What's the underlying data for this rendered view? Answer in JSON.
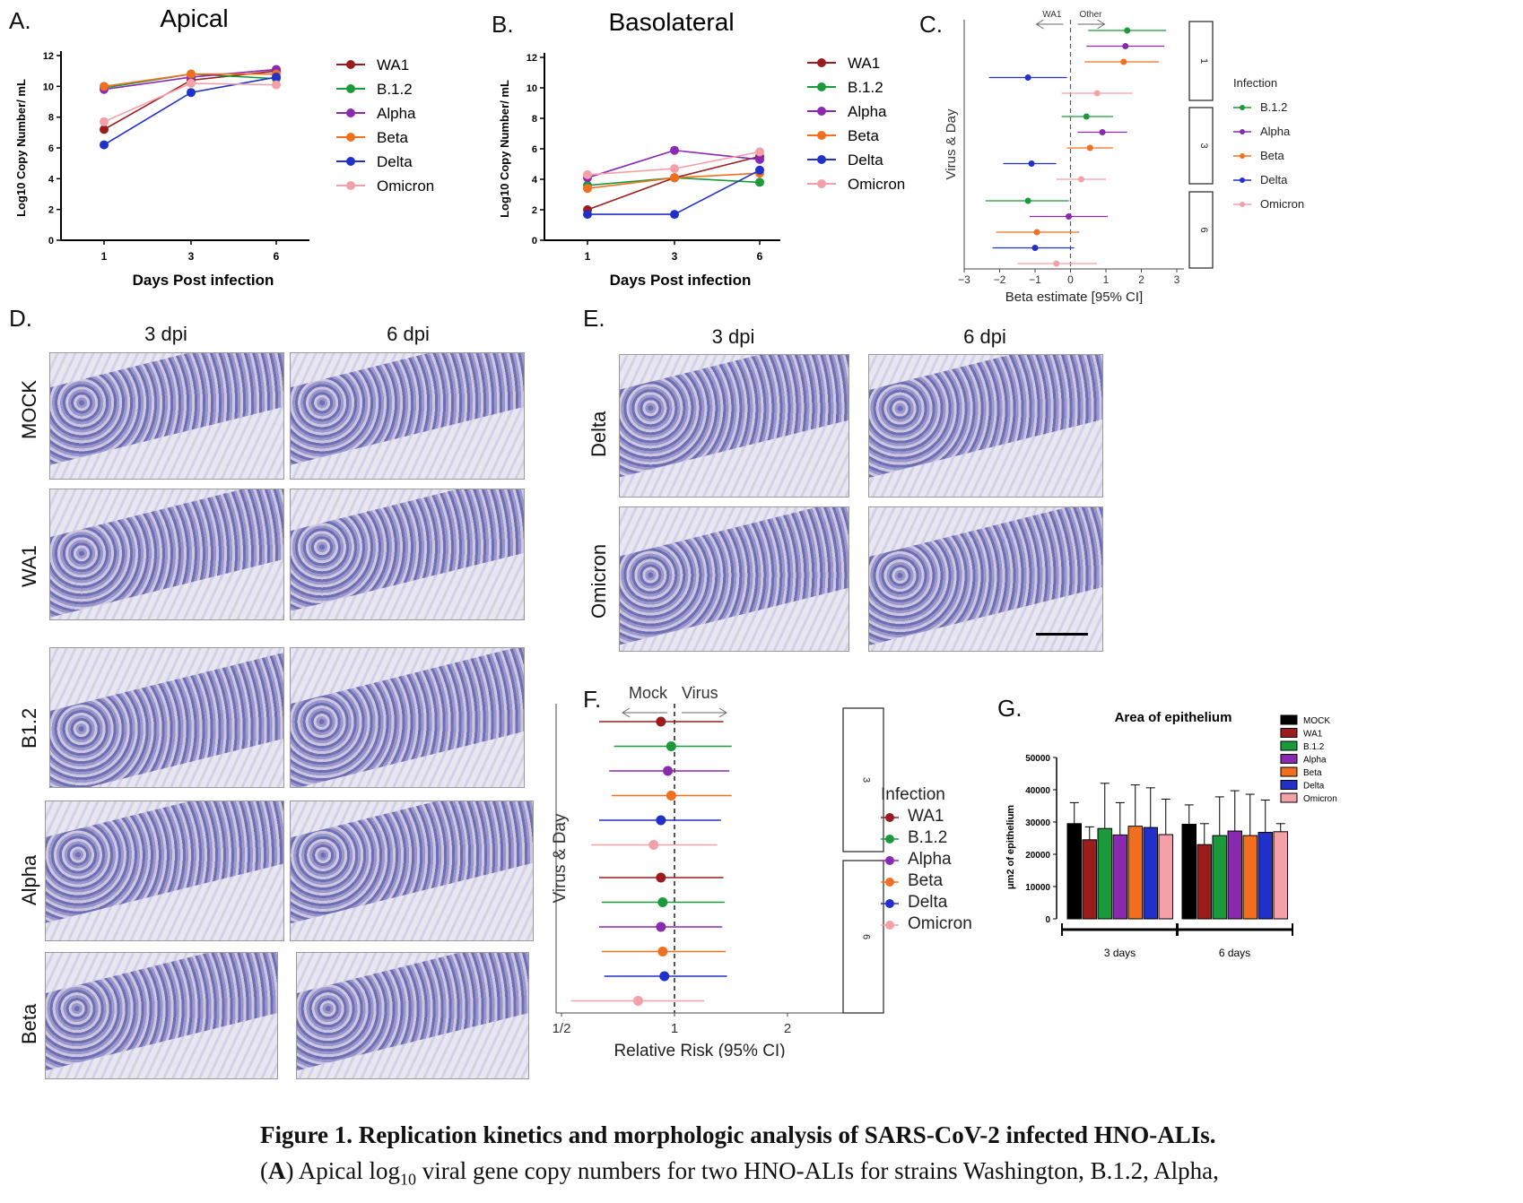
{
  "panels": {
    "a": "A.",
    "b": "B.",
    "c": "C.",
    "d": "D.",
    "e": "E.",
    "f": "F.",
    "g": "G."
  },
  "colors": {
    "WA1": "#9b1c1c",
    "B.1.2": "#1a9a3a",
    "Alpha": "#8a2ab0",
    "Beta": "#f07020",
    "Delta": "#2030c8",
    "Omicron": "#f4a0a8",
    "MOCK": "#000000"
  },
  "chart_data": [
    {
      "id": "apical",
      "type": "line",
      "title": "Apical",
      "xlabel": "Days Post infection",
      "ylabel": "Log10 Copy Number/ mL",
      "categories": [
        "1",
        "3",
        "6"
      ],
      "ylim": [
        0,
        12
      ],
      "yticks": [
        "0",
        "2",
        "4",
        "6",
        "8",
        "10",
        "12"
      ],
      "series": [
        {
          "name": "WA1",
          "values": [
            7.2,
            10.4,
            11.0
          ]
        },
        {
          "name": "B.1.2",
          "values": [
            9.9,
            10.8,
            10.5
          ]
        },
        {
          "name": "Alpha",
          "values": [
            9.8,
            10.6,
            11.1
          ]
        },
        {
          "name": "Beta",
          "values": [
            10.0,
            10.8,
            10.8
          ]
        },
        {
          "name": "Delta",
          "values": [
            6.2,
            9.6,
            10.6
          ]
        },
        {
          "name": "Omicron",
          "values": [
            7.7,
            10.2,
            10.1
          ]
        }
      ]
    },
    {
      "id": "basolateral",
      "type": "line",
      "title": "Basolateral",
      "xlabel": "Days Post infection",
      "ylabel": "Log10 Copy Number/ mL",
      "categories": [
        "1",
        "3",
        "6"
      ],
      "ylim": [
        0,
        12
      ],
      "yticks": [
        "0",
        "2",
        "4",
        "6",
        "8",
        "10",
        "12"
      ],
      "series": [
        {
          "name": "WA1",
          "values": [
            2.0,
            4.1,
            5.5
          ]
        },
        {
          "name": "B.1.2",
          "values": [
            3.6,
            4.1,
            3.8
          ]
        },
        {
          "name": "Alpha",
          "values": [
            4.1,
            5.9,
            5.3
          ]
        },
        {
          "name": "Beta",
          "values": [
            3.4,
            4.1,
            4.4
          ]
        },
        {
          "name": "Delta",
          "values": [
            1.7,
            1.7,
            4.6
          ]
        },
        {
          "name": "Omicron",
          "values": [
            4.3,
            4.7,
            5.8
          ]
        }
      ]
    },
    {
      "id": "beta_estimate",
      "type": "scatter",
      "xlabel": "Beta estimate [95% CI]",
      "ylabel": "Virus & Day",
      "xlim": [
        -3,
        3
      ],
      "xticks": [
        "−3",
        "−2",
        "−1",
        "0",
        "1",
        "2",
        "3"
      ],
      "direction_left": "WA1",
      "direction_right": "Other",
      "legend_title": "Infection",
      "legend": [
        "B.1.2",
        "Alpha",
        "Beta",
        "Delta",
        "Omicron"
      ],
      "facets": [
        "1",
        "3",
        "6"
      ],
      "points": [
        {
          "day": "1",
          "name": "B.1.2",
          "est": 1.6,
          "lo": 0.5,
          "hi": 2.7
        },
        {
          "day": "1",
          "name": "Alpha",
          "est": 1.55,
          "lo": 0.45,
          "hi": 2.65
        },
        {
          "day": "1",
          "name": "Beta",
          "est": 1.5,
          "lo": 0.4,
          "hi": 2.5
        },
        {
          "day": "1",
          "name": "Delta",
          "est": -1.2,
          "lo": -2.3,
          "hi": -0.1
        },
        {
          "day": "1",
          "name": "Omicron",
          "est": 0.75,
          "lo": -0.25,
          "hi": 1.75
        },
        {
          "day": "3",
          "name": "B.1.2",
          "est": 0.45,
          "lo": -0.25,
          "hi": 1.2
        },
        {
          "day": "3",
          "name": "Alpha",
          "est": 0.9,
          "lo": 0.2,
          "hi": 1.6
        },
        {
          "day": "3",
          "name": "Beta",
          "est": 0.55,
          "lo": -0.1,
          "hi": 1.2
        },
        {
          "day": "3",
          "name": "Delta",
          "est": -1.1,
          "lo": -1.9,
          "hi": -0.4
        },
        {
          "day": "3",
          "name": "Omicron",
          "est": 0.3,
          "lo": -0.4,
          "hi": 1.0
        },
        {
          "day": "6",
          "name": "B.1.2",
          "est": -1.2,
          "lo": -2.4,
          "hi": -0.05
        },
        {
          "day": "6",
          "name": "Alpha",
          "est": -0.05,
          "lo": -1.15,
          "hi": 1.05
        },
        {
          "day": "6",
          "name": "Beta",
          "est": -0.95,
          "lo": -2.1,
          "hi": 0.25
        },
        {
          "day": "6",
          "name": "Delta",
          "est": -1.0,
          "lo": -2.2,
          "hi": 0.1
        },
        {
          "day": "6",
          "name": "Omicron",
          "est": -0.4,
          "lo": -1.5,
          "hi": 0.75
        }
      ]
    },
    {
      "id": "relative_risk",
      "type": "scatter",
      "xlabel": "Relative Risk (95% CI)",
      "ylabel": "Virus & Day",
      "xlim": [
        0.5,
        2
      ],
      "xticks": [
        "1/2",
        "1",
        "2"
      ],
      "direction_left": "Mock",
      "direction_right": "Virus",
      "legend_title": "Infection",
      "legend": [
        "WA1",
        "B.1.2",
        "Alpha",
        "Beta",
        "Delta",
        "Omicron"
      ],
      "facets": [
        "3",
        "6"
      ],
      "points": [
        {
          "day": "3",
          "name": "WA1",
          "est": 0.92,
          "lo": 0.63,
          "hi": 1.35
        },
        {
          "day": "3",
          "name": "B.1.2",
          "est": 0.98,
          "lo": 0.69,
          "hi": 1.42
        },
        {
          "day": "3",
          "name": "Alpha",
          "est": 0.96,
          "lo": 0.67,
          "hi": 1.4
        },
        {
          "day": "3",
          "name": "Beta",
          "est": 0.98,
          "lo": 0.68,
          "hi": 1.42
        },
        {
          "day": "3",
          "name": "Delta",
          "est": 0.92,
          "lo": 0.63,
          "hi": 1.33
        },
        {
          "day": "3",
          "name": "Omicron",
          "est": 0.88,
          "lo": 0.6,
          "hi": 1.3
        },
        {
          "day": "6",
          "name": "WA1",
          "est": 0.92,
          "lo": 0.63,
          "hi": 1.35
        },
        {
          "day": "6",
          "name": "B.1.2",
          "est": 0.93,
          "lo": 0.64,
          "hi": 1.36
        },
        {
          "day": "6",
          "name": "Alpha",
          "est": 0.92,
          "lo": 0.63,
          "hi": 1.34
        },
        {
          "day": "6",
          "name": "Beta",
          "est": 0.93,
          "lo": 0.64,
          "hi": 1.37
        },
        {
          "day": "6",
          "name": "Delta",
          "est": 0.94,
          "lo": 0.65,
          "hi": 1.38
        },
        {
          "day": "6",
          "name": "Omicron",
          "est": 0.8,
          "lo": 0.53,
          "hi": 1.2
        }
      ]
    },
    {
      "id": "area_epithelium",
      "type": "bar",
      "title": "Area of epithelium",
      "ylabel": "μm2 of epithelium",
      "ylim": [
        0,
        50000
      ],
      "yticks": [
        "0",
        "10000",
        "20000",
        "30000",
        "40000",
        "50000"
      ],
      "categories": [
        "3 days",
        "6 days"
      ],
      "series": [
        {
          "name": "MOCK",
          "values": [
            29500,
            29300
          ],
          "err": [
            6500,
            6000
          ]
        },
        {
          "name": "WA1",
          "values": [
            24500,
            23000
          ],
          "err": [
            4000,
            6500
          ]
        },
        {
          "name": "B.1.2",
          "values": [
            28000,
            25800
          ],
          "err": [
            14000,
            12000
          ]
        },
        {
          "name": "Alpha",
          "values": [
            26000,
            27200
          ],
          "err": [
            10000,
            12500
          ]
        },
        {
          "name": "Beta",
          "values": [
            28700,
            25800
          ],
          "err": [
            12800,
            12800
          ]
        },
        {
          "name": "Delta",
          "values": [
            28300,
            26800
          ],
          "err": [
            12300,
            10000
          ]
        },
        {
          "name": "Omicron",
          "values": [
            26100,
            27000
          ],
          "err": [
            11000,
            2500
          ]
        }
      ]
    }
  ],
  "histology": {
    "d_cols": [
      "3 dpi",
      "6 dpi"
    ],
    "d_rows": [
      "MOCK",
      "WA1",
      "B1.2",
      "Alpha",
      "Beta"
    ],
    "e_cols": [
      "3 dpi",
      "6 dpi"
    ],
    "e_rows": [
      "Delta",
      "Omicron"
    ]
  },
  "caption": {
    "line1": "Figure 1.  Replication kinetics and morphologic analysis of SARS-CoV-2 infected HNO-ALIs.",
    "line2_bold": "A",
    "line2_pre": "(",
    "line2_mid": ") Apical log",
    "line2_sub": "10",
    "line2_post": " viral gene copy numbers for two HNO-ALIs for strains Washington, B.1.2, Alpha,"
  }
}
